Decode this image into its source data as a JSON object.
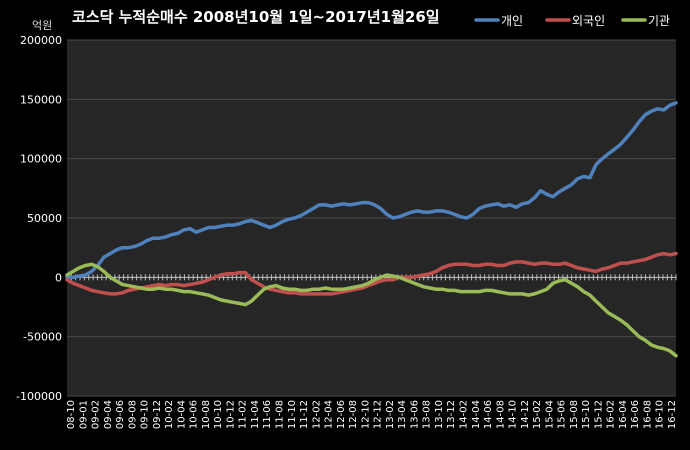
{
  "chart_data": {
    "type": "line",
    "title": "코스닥 누적순매수 2008년10월 1일~2017년1월26일",
    "unit_label": "억원",
    "ylim": [
      -100000,
      200000
    ],
    "y_ticks": [
      -100000,
      -50000,
      0,
      50000,
      100000,
      150000,
      200000
    ],
    "y_tick_labels": [
      "-100000",
      "-50000",
      "0",
      "50000",
      "100000",
      "150000",
      "200000"
    ],
    "grid": true,
    "legend_position": "top-right",
    "x_tick_labels": [
      "08-10",
      "09-01",
      "09-02",
      "09-04",
      "09-06",
      "09-08",
      "09-10",
      "09-12",
      "10-02",
      "10-04",
      "10-06",
      "10-08",
      "10-10",
      "10-12",
      "11-02",
      "11-04",
      "11-06",
      "11-08",
      "11-10",
      "11-12",
      "12-02",
      "12-04",
      "12-06",
      "12-08",
      "12-10",
      "12-12",
      "13-02",
      "13-04",
      "13-06",
      "13-08",
      "13-10",
      "13-12",
      "14-02",
      "14-04",
      "14-06",
      "14-08",
      "14-10",
      "14-12",
      "15-02",
      "15-04",
      "15-06",
      "15-08",
      "15-10",
      "15-12",
      "16-02",
      "16-04",
      "16-06",
      "16-08",
      "16-10",
      "16-12"
    ],
    "x": [
      "2008-10",
      "2008-11",
      "2008-12",
      "2009-01",
      "2009-02",
      "2009-03",
      "2009-04",
      "2009-05",
      "2009-06",
      "2009-07",
      "2009-08",
      "2009-09",
      "2009-10",
      "2009-11",
      "2009-12",
      "2010-01",
      "2010-02",
      "2010-03",
      "2010-04",
      "2010-05",
      "2010-06",
      "2010-07",
      "2010-08",
      "2010-09",
      "2010-10",
      "2010-11",
      "2010-12",
      "2011-01",
      "2011-02",
      "2011-03",
      "2011-04",
      "2011-05",
      "2011-06",
      "2011-07",
      "2011-08",
      "2011-09",
      "2011-10",
      "2011-11",
      "2011-12",
      "2012-01",
      "2012-02",
      "2012-03",
      "2012-04",
      "2012-05",
      "2012-06",
      "2012-07",
      "2012-08",
      "2012-09",
      "2012-10",
      "2012-11",
      "2012-12",
      "2013-01",
      "2013-02",
      "2013-03",
      "2013-04",
      "2013-05",
      "2013-06",
      "2013-07",
      "2013-08",
      "2013-09",
      "2013-10",
      "2013-11",
      "2013-12",
      "2014-01",
      "2014-02",
      "2014-03",
      "2014-04",
      "2014-05",
      "2014-06",
      "2014-07",
      "2014-08",
      "2014-09",
      "2014-10",
      "2014-11",
      "2014-12",
      "2015-01",
      "2015-02",
      "2015-03",
      "2015-04",
      "2015-05",
      "2015-06",
      "2015-07",
      "2015-08",
      "2015-09",
      "2015-10",
      "2015-11",
      "2015-12",
      "2016-01",
      "2016-02",
      "2016-03",
      "2016-04",
      "2016-05",
      "2016-06",
      "2016-07",
      "2016-08",
      "2016-09",
      "2016-10",
      "2016-11",
      "2016-12",
      "2017-01"
    ],
    "series": [
      {
        "name": "개인",
        "color": "#4F81BD",
        "values": [
          0,
          0,
          1000,
          2000,
          5000,
          10000,
          17000,
          20000,
          23000,
          25000,
          25000,
          26000,
          28000,
          31000,
          33000,
          33000,
          34000,
          36000,
          37000,
          40000,
          41000,
          38000,
          40000,
          42000,
          42000,
          43000,
          44000,
          44000,
          45000,
          47000,
          48000,
          46000,
          44000,
          42000,
          44000,
          47000,
          49000,
          50000,
          52000,
          55000,
          58000,
          61000,
          61000,
          60000,
          61000,
          62000,
          61000,
          62000,
          63000,
          63000,
          61000,
          58000,
          53000,
          50000,
          51000,
          53000,
          55000,
          56000,
          55000,
          55000,
          56000,
          56000,
          55000,
          53000,
          51000,
          50000,
          53000,
          58000,
          60000,
          61000,
          62000,
          60000,
          61000,
          59000,
          62000,
          63000,
          67000,
          73000,
          70000,
          68000,
          72000,
          75000,
          78000,
          83000,
          85000,
          84000,
          95000,
          100000,
          104000,
          108000,
          112000,
          118000,
          124000,
          131000,
          137000,
          140000,
          142000,
          141000,
          145000,
          147000
        ]
      },
      {
        "name": "외국인",
        "color": "#C0504D",
        "values": [
          -2000,
          -5000,
          -7000,
          -9000,
          -11000,
          -12000,
          -13000,
          -14000,
          -14000,
          -13000,
          -11000,
          -10000,
          -9000,
          -8000,
          -7000,
          -6000,
          -7000,
          -6000,
          -6000,
          -7000,
          -6000,
          -5000,
          -4000,
          -2000,
          0,
          2000,
          3000,
          3000,
          4000,
          4000,
          -2000,
          -5000,
          -8000,
          -10000,
          -11000,
          -12000,
          -13000,
          -13000,
          -14000,
          -14000,
          -14000,
          -14000,
          -14000,
          -14000,
          -13000,
          -12000,
          -11000,
          -10000,
          -9000,
          -7000,
          -5000,
          -3000,
          -2000,
          -2000,
          0,
          0,
          0,
          1000,
          2000,
          3000,
          5000,
          8000,
          10000,
          11000,
          11000,
          11000,
          10000,
          10000,
          11000,
          11000,
          10000,
          10000,
          12000,
          13000,
          13000,
          12000,
          11000,
          12000,
          12000,
          11000,
          11000,
          12000,
          10000,
          8000,
          7000,
          6000,
          5000,
          7000,
          8000,
          10000,
          12000,
          12000,
          13000,
          14000,
          15000,
          17000,
          19000,
          20000,
          19000,
          20000
        ]
      },
      {
        "name": "기관",
        "color": "#9BBB59",
        "values": [
          2000,
          5000,
          8000,
          10000,
          11000,
          9000,
          5000,
          0,
          -3000,
          -6000,
          -7000,
          -8000,
          -9000,
          -10000,
          -10000,
          -9000,
          -10000,
          -10000,
          -11000,
          -12000,
          -12000,
          -13000,
          -14000,
          -15000,
          -17000,
          -19000,
          -20000,
          -21000,
          -22000,
          -23000,
          -20000,
          -15000,
          -10000,
          -8000,
          -7000,
          -9000,
          -10000,
          -10000,
          -11000,
          -11000,
          -10000,
          -10000,
          -9000,
          -10000,
          -10000,
          -10000,
          -9000,
          -8000,
          -7000,
          -5000,
          -2000,
          0,
          2000,
          1000,
          0,
          -2000,
          -4000,
          -6000,
          -8000,
          -9000,
          -10000,
          -10000,
          -11000,
          -11000,
          -12000,
          -12000,
          -12000,
          -12000,
          -11000,
          -11000,
          -12000,
          -13000,
          -14000,
          -14000,
          -14000,
          -15000,
          -14000,
          -12000,
          -10000,
          -5000,
          -3000,
          -2000,
          -5000,
          -8000,
          -12000,
          -15000,
          -20000,
          -25000,
          -30000,
          -33000,
          -36000,
          -40000,
          -45000,
          -50000,
          -53000,
          -57000,
          -59000,
          -60000,
          -62000,
          -66000
        ]
      }
    ]
  }
}
